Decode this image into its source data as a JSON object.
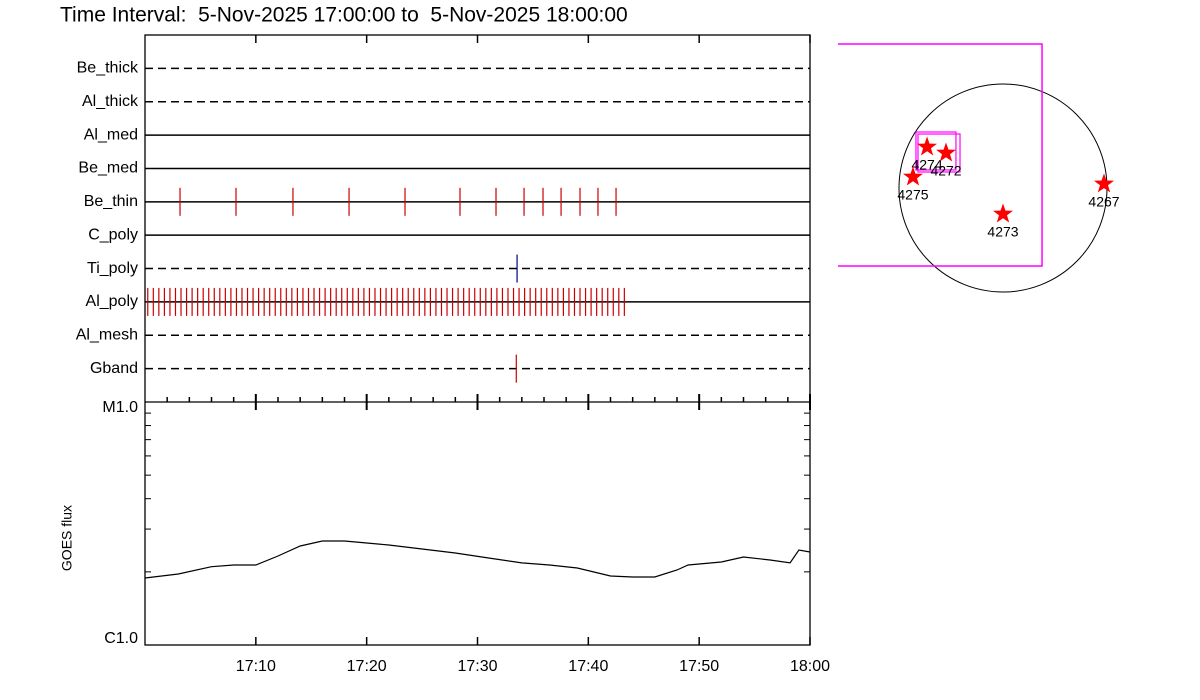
{
  "chart_data": [
    {
      "type": "timeline",
      "title": "Time Interval:  5-Nov-2025 17:00:00 to  5-Nov-2025 18:00:00",
      "xlim": [
        0,
        60
      ],
      "rows": [
        {
          "name": "Be_thick",
          "style": "dashed",
          "color": "#cc0000",
          "events": []
        },
        {
          "name": "Al_thick",
          "style": "dashed",
          "color": "#cc0000",
          "events": []
        },
        {
          "name": "Al_med",
          "style": "solid",
          "color": "#cc0000",
          "events": []
        },
        {
          "name": "Be_med",
          "style": "solid",
          "color": "#cc0000",
          "events": []
        },
        {
          "name": "Be_thin",
          "style": "solid",
          "color": "#cc0000",
          "events": [
            3.16,
            8.21,
            13.35,
            18.41,
            23.46,
            28.42,
            31.67,
            34.2,
            35.91,
            37.54,
            39.25,
            40.87,
            42.5
          ]
        },
        {
          "name": "C_poly",
          "style": "solid",
          "color": "#cc0000",
          "events": []
        },
        {
          "name": "Ti_poly",
          "style": "dashed",
          "color": "#000080",
          "events": [
            33.57
          ]
        },
        {
          "name": "Al_poly",
          "style": "solid",
          "color": "#cc0000",
          "events": [
            0.25,
            0.75,
            1.25,
            1.75,
            2.25,
            2.75,
            3.25,
            3.75,
            4.25,
            4.75,
            5.25,
            5.75,
            6.25,
            6.75,
            7.25,
            7.75,
            8.25,
            8.75,
            9.25,
            9.75,
            10.25,
            10.75,
            11.25,
            11.75,
            12.25,
            12.75,
            13.25,
            13.75,
            14.25,
            14.75,
            15.25,
            15.75,
            16.25,
            16.75,
            17.25,
            17.75,
            18.25,
            18.75,
            19.25,
            19.75,
            20.25,
            20.75,
            21.25,
            21.75,
            22.25,
            22.75,
            23.25,
            23.75,
            24.25,
            24.75,
            25.25,
            25.75,
            26.25,
            26.75,
            27.25,
            27.75,
            28.25,
            28.75,
            29.25,
            29.75,
            30.25,
            30.75,
            31.25,
            31.75,
            32.25,
            32.75,
            33.25,
            33.75,
            34.25,
            34.75,
            35.25,
            35.75,
            36.25,
            36.75,
            37.25,
            37.75,
            38.25,
            38.75,
            39.25,
            39.75,
            40.25,
            40.75,
            41.25,
            41.75,
            42.25,
            42.75,
            43.25
          ]
        },
        {
          "name": "Al_mesh",
          "style": "dashed",
          "color": "#cc0000",
          "events": []
        },
        {
          "name": "Gband",
          "style": "dashed",
          "color": "#cc0000",
          "events": [
            33.5
          ]
        }
      ]
    },
    {
      "type": "line",
      "ylabel": "GOES flux",
      "log_y": true,
      "color": "#000000",
      "xlim": [
        0,
        60
      ],
      "xticks": [
        {
          "value": 10,
          "label": "17:10"
        },
        {
          "value": 20,
          "label": "17:20"
        },
        {
          "value": 30,
          "label": "17:30"
        },
        {
          "value": 40,
          "label": "17:40"
        },
        {
          "value": 50,
          "label": "17:50"
        },
        {
          "value": 60,
          "label": "18:00"
        }
      ],
      "xminor": [
        2,
        4,
        6,
        8,
        12,
        14,
        16,
        18,
        22,
        24,
        26,
        28,
        32,
        34,
        36,
        38,
        42,
        44,
        46,
        48,
        52,
        54,
        56,
        58
      ],
      "ylim": [
        1e-06,
        1e-05
      ],
      "yticks": [
        {
          "value": 1e-06,
          "label": "C1.0"
        },
        {
          "value": 1e-05,
          "label": "M1.0"
        }
      ],
      "yminor": [
        2e-06,
        3e-06,
        4e-06,
        5e-06,
        6e-06,
        7e-06,
        8e-06,
        9e-06
      ],
      "x": [
        0,
        3,
        6,
        8,
        10,
        12,
        14,
        16,
        18,
        20,
        22,
        25,
        28,
        31,
        34,
        36.5,
        39,
        42,
        44,
        46,
        48,
        49,
        52,
        54,
        56.4,
        58.2,
        59,
        60
      ],
      "values": [
        1.887e-06,
        1.96e-06,
        2.1e-06,
        2.134e-06,
        2.134e-06,
        2.325e-06,
        2.556e-06,
        2.679e-06,
        2.679e-06,
        2.629e-06,
        2.579e-06,
        2.483e-06,
        2.391e-06,
        2.28e-06,
        2.176e-06,
        2.134e-06,
        2.074e-06,
        1.923e-06,
        1.905e-06,
        1.905e-06,
        2.035e-06,
        2.134e-06,
        2.196e-06,
        2.302e-06,
        2.238e-06,
        2.176e-06,
        2.46e-06,
        2.414e-06
      ]
    },
    {
      "type": "map",
      "rsun": 975,
      "box_color": "#ff00ff",
      "marker_color": "#ff0000",
      "fov": {
        "xlim": [
          -1547,
          366
        ],
        "ylim": [
          -731,
          1350
        ]
      },
      "pointings": [
        {
          "xlim": [
            -816,
            -441
          ],
          "ylim": [
            169,
            525
          ]
        },
        {
          "xlim": [
            -797,
            -403
          ],
          "ylim": [
            150,
            506
          ]
        }
      ],
      "regions": [
        {
          "label": "4274",
          "x": -712,
          "y": 384
        },
        {
          "label": "4272",
          "x": -534,
          "y": 328
        },
        {
          "label": "4275",
          "x": -844,
          "y": 103
        },
        {
          "label": "4273",
          "x": 0,
          "y": -244
        },
        {
          "label": "4267",
          "x": 947,
          "y": 38
        }
      ]
    }
  ]
}
